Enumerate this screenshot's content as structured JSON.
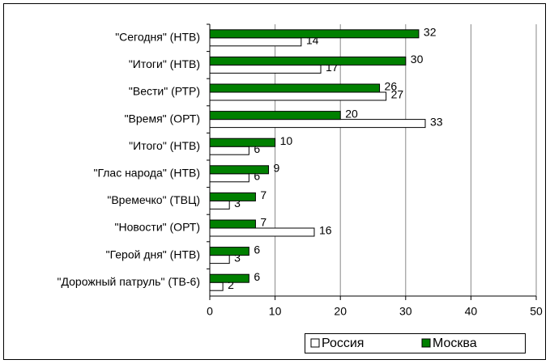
{
  "chart_data": {
    "type": "hbar",
    "categories": [
      "\"Сегодня\" (НТВ)",
      "\"Итоги\" (НТВ)",
      "\"Вести\" (РТР)",
      "\"Время\" (ОРТ)",
      "\"Итого\" (НТВ)",
      "\"Глас народа\" (НТВ)",
      "\"Времечко\" (ТВЦ)",
      "\"Новости\" (ОРТ)",
      "\"Герой дня\" (НТВ)",
      "\"Дорожный патруль\" (ТВ-6)"
    ],
    "series": [
      {
        "name": "Россия",
        "color": "#ffffff",
        "values": [
          14,
          17,
          27,
          33,
          6,
          6,
          3,
          16,
          3,
          2
        ]
      },
      {
        "name": "Москва",
        "color": "#008000",
        "values": [
          32,
          30,
          26,
          20,
          10,
          9,
          7,
          7,
          6,
          6
        ]
      }
    ],
    "xlim": [
      0,
      50
    ],
    "xticks": [
      0,
      10,
      20,
      30,
      40,
      50
    ],
    "grid": true,
    "legend": "bottom-right"
  }
}
